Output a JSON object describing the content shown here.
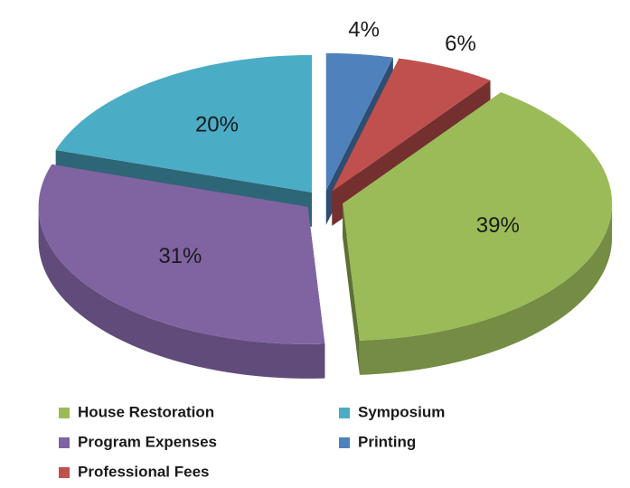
{
  "chart_data": {
    "type": "pie3d",
    "categories": [
      "Printing",
      "Professional Fees",
      "House Restoration",
      "Program Expenses",
      "Symposium"
    ],
    "values": [
      4,
      6,
      39,
      31,
      20
    ],
    "value_labels": [
      "4%",
      "6%",
      "39%",
      "31%",
      "20%"
    ],
    "colors": [
      "#4f81bd",
      "#c0504d",
      "#9bbb59",
      "#8064a2",
      "#4bacc6"
    ],
    "legend": "bottom"
  }
}
